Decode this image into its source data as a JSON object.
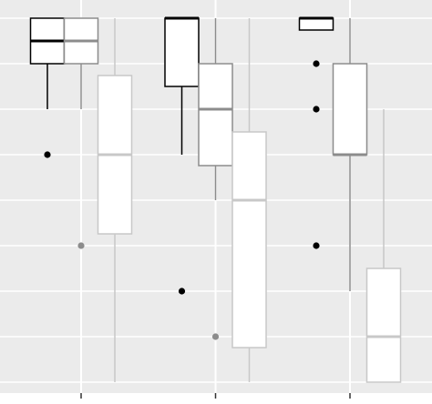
{
  "chart_data": {
    "type": "boxplot",
    "categories": [
      null,
      null,
      null
    ],
    "ylim": [
      -0.24,
      8.4
    ],
    "yticks": [
      0,
      1,
      2,
      3,
      4,
      5,
      6,
      7,
      8
    ],
    "grid": true,
    "series": [
      {
        "color": "#000000",
        "values": [
          {
            "whislo": 6,
            "q1": 7,
            "med": 7.5,
            "q3": 8,
            "whishi": 8,
            "outliers": [
              5
            ]
          },
          {
            "whislo": 5,
            "q1": 6.5,
            "med": 8,
            "q3": 8,
            "whishi": 8,
            "outliers": [
              2
            ]
          },
          {
            "whislo": 7.74,
            "q1": 7.74,
            "med": 8,
            "q3": 8,
            "whishi": 8,
            "outliers": [
              7,
              6,
              3
            ]
          }
        ]
      },
      {
        "color": "#8c8c8c",
        "values": [
          {
            "whislo": 6,
            "q1": 7,
            "med": 7.5,
            "q3": 8,
            "whishi": 8,
            "outliers": [
              3
            ]
          },
          {
            "whislo": 4,
            "q1": 4.76,
            "med": 6,
            "q3": 7,
            "whishi": 8,
            "outliers": [
              1
            ]
          },
          {
            "whislo": 2,
            "q1": 5,
            "med": 5,
            "q3": 7,
            "whishi": 8,
            "outliers": []
          }
        ]
      },
      {
        "color": "#c8c8c8",
        "values": [
          {
            "whislo": 0,
            "q1": 3.26,
            "med": 5,
            "q3": 6.74,
            "whishi": 8,
            "outliers": []
          },
          {
            "whislo": 0,
            "q1": 0.76,
            "med": 4,
            "q3": 5.5,
            "whishi": 8,
            "outliers": []
          },
          {
            "whislo": 0,
            "q1": 0,
            "med": 1,
            "q3": 2.5,
            "whishi": 6,
            "outliers": []
          }
        ]
      }
    ]
  }
}
